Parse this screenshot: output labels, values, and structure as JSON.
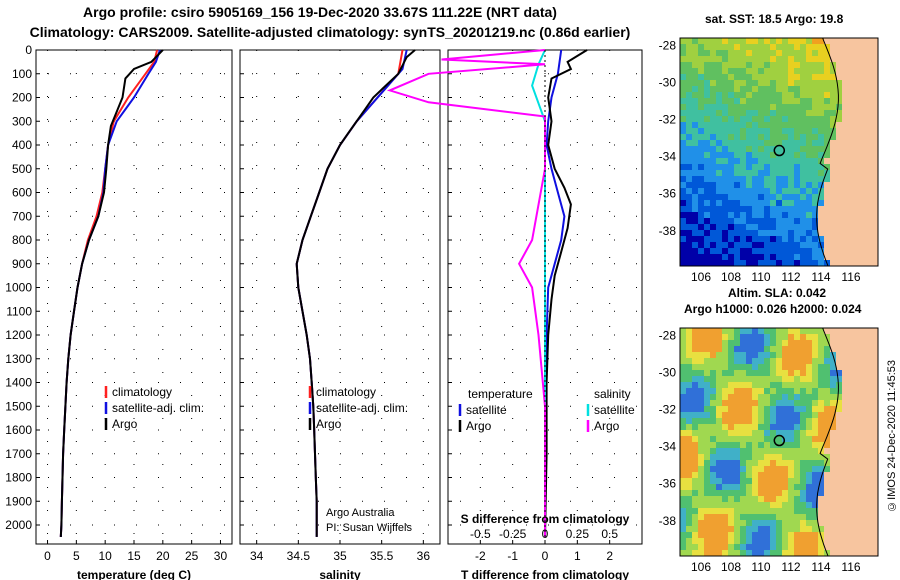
{
  "header": {
    "title_line1": "Argo profile: csiro 5905169_156 19-Dec-2020 33.67S 111.22E (NRT data)",
    "title_line2": "Climatology: CARS2009. Satellite-adjusted climatology: synTS_20201219.nc (0.86d earlier)"
  },
  "colors": {
    "climatology": "#ff2020",
    "satellite": "#1010e0",
    "argo": "#000000",
    "sat_salinity": "#00e0e0",
    "argo_salinity": "#ff00ff"
  },
  "depth_axis": {
    "ticks": [
      "0",
      "100",
      "200",
      "300",
      "400",
      "500",
      "600",
      "700",
      "800",
      "900",
      "1000",
      "1100",
      "1200",
      "1300",
      "1400",
      "1500",
      "1600",
      "1700",
      "1800",
      "1900",
      "2000"
    ]
  },
  "chart_data": [
    {
      "type": "line",
      "panel": "temperature",
      "xlabel": "temperature (deg C)",
      "xlim": [
        -2,
        32
      ],
      "ylim": [
        2080,
        0
      ],
      "xticks": [
        0,
        5,
        10,
        15,
        20,
        25,
        30
      ],
      "xtick_labels": [
        "0",
        "5",
        "10",
        "15",
        "20",
        "25",
        "30"
      ],
      "legend": [
        "climatology",
        "satellite-adj. clim.",
        "Argo"
      ],
      "series": [
        {
          "name": "climatology",
          "points": [
            [
              19,
              0
            ],
            [
              18.5,
              50
            ],
            [
              17,
              100
            ],
            [
              14,
              200
            ],
            [
              11.5,
              300
            ],
            [
              10.5,
              400
            ],
            [
              10,
              500
            ],
            [
              9.5,
              600
            ],
            [
              8.5,
              700
            ],
            [
              7,
              800
            ],
            [
              6,
              900
            ],
            [
              5.2,
              1000
            ],
            [
              4.6,
              1100
            ],
            [
              4,
              1200
            ],
            [
              3.6,
              1300
            ],
            [
              3.3,
              1400
            ],
            [
              3.1,
              1500
            ],
            [
              2.9,
              1600
            ],
            [
              2.7,
              1700
            ],
            [
              2.6,
              1800
            ],
            [
              2.5,
              1900
            ],
            [
              2.4,
              2000
            ],
            [
              2.3,
              2050
            ]
          ]
        },
        {
          "name": "satellite",
          "points": [
            [
              19.5,
              0
            ],
            [
              18.8,
              50
            ],
            [
              17.5,
              100
            ],
            [
              15,
              200
            ],
            [
              12,
              300
            ],
            [
              10.5,
              400
            ],
            [
              10,
              500
            ],
            [
              9.7,
              600
            ],
            [
              8.8,
              700
            ],
            [
              7.2,
              800
            ],
            [
              6,
              900
            ],
            [
              5.2,
              1000
            ],
            [
              4.6,
              1100
            ],
            [
              4,
              1200
            ],
            [
              3.6,
              1300
            ],
            [
              3.3,
              1400
            ],
            [
              3.1,
              1500
            ],
            [
              2.9,
              1600
            ],
            [
              2.7,
              1700
            ],
            [
              2.6,
              1800
            ],
            [
              2.5,
              1900
            ],
            [
              2.4,
              2000
            ],
            [
              2.3,
              2050
            ]
          ]
        },
        {
          "name": "Argo",
          "points": [
            [
              20,
              0
            ],
            [
              19.2,
              20
            ],
            [
              18,
              50
            ],
            [
              15,
              80
            ],
            [
              13.5,
              120
            ],
            [
              13,
              200
            ],
            [
              11,
              320
            ],
            [
              10.5,
              400
            ],
            [
              10.2,
              500
            ],
            [
              9.8,
              600
            ],
            [
              8.8,
              700
            ],
            [
              7.2,
              800
            ],
            [
              6,
              900
            ],
            [
              5.2,
              1000
            ],
            [
              4.6,
              1100
            ],
            [
              4,
              1200
            ],
            [
              3.6,
              1300
            ],
            [
              3.3,
              1400
            ],
            [
              3.1,
              1500
            ],
            [
              2.9,
              1600
            ],
            [
              2.7,
              1700
            ],
            [
              2.6,
              1800
            ],
            [
              2.5,
              1900
            ],
            [
              2.4,
              2000
            ],
            [
              2.3,
              2050
            ]
          ]
        }
      ]
    },
    {
      "type": "line",
      "panel": "salinity",
      "xlabel": "salinity",
      "xlim": [
        33.8,
        36.2
      ],
      "ylim": [
        2080,
        0
      ],
      "xticks": [
        34,
        34.5,
        35,
        35.5,
        36
      ],
      "xtick_labels": [
        "34",
        "34.5",
        "35",
        "35.5",
        "36"
      ],
      "legend": [
        "climatology",
        "satellite-adj. clim.",
        "Argo"
      ],
      "annotation": [
        "Argo Australia",
        "PI: Susan Wijffels"
      ],
      "series": [
        {
          "name": "climatology",
          "points": [
            [
              35.75,
              0
            ],
            [
              35.7,
              100
            ],
            [
              35.45,
              200
            ],
            [
              35.2,
              300
            ],
            [
              35,
              400
            ],
            [
              34.85,
              500
            ],
            [
              34.75,
              600
            ],
            [
              34.65,
              700
            ],
            [
              34.55,
              800
            ],
            [
              34.48,
              900
            ],
            [
              34.5,
              1000
            ],
            [
              34.55,
              1100
            ],
            [
              34.6,
              1200
            ],
            [
              34.64,
              1300
            ],
            [
              34.66,
              1400
            ],
            [
              34.68,
              1500
            ],
            [
              34.69,
              1600
            ],
            [
              34.7,
              1700
            ],
            [
              34.71,
              1800
            ],
            [
              34.72,
              1900
            ],
            [
              34.72,
              2000
            ],
            [
              34.72,
              2050
            ]
          ]
        },
        {
          "name": "satellite",
          "points": [
            [
              35.8,
              0
            ],
            [
              35.75,
              80
            ],
            [
              35.5,
              180
            ],
            [
              35.2,
              300
            ],
            [
              35,
              400
            ],
            [
              34.85,
              500
            ],
            [
              34.75,
              600
            ],
            [
              34.65,
              700
            ],
            [
              34.55,
              800
            ],
            [
              34.48,
              900
            ],
            [
              34.5,
              1000
            ],
            [
              34.55,
              1100
            ],
            [
              34.6,
              1200
            ],
            [
              34.64,
              1300
            ],
            [
              34.66,
              1400
            ],
            [
              34.68,
              1500
            ],
            [
              34.69,
              1600
            ],
            [
              34.7,
              1700
            ],
            [
              34.71,
              1800
            ],
            [
              34.72,
              1900
            ],
            [
              34.72,
              2000
            ],
            [
              34.72,
              2050
            ]
          ]
        },
        {
          "name": "Argo",
          "points": [
            [
              35.9,
              0
            ],
            [
              35.8,
              30
            ],
            [
              35.7,
              100
            ],
            [
              35.55,
              150
            ],
            [
              35.4,
              200
            ],
            [
              35.3,
              250
            ],
            [
              35.1,
              350
            ],
            [
              35,
              400
            ],
            [
              34.85,
              500
            ],
            [
              34.75,
              600
            ],
            [
              34.65,
              700
            ],
            [
              34.55,
              800
            ],
            [
              34.48,
              900
            ],
            [
              34.5,
              1000
            ],
            [
              34.55,
              1100
            ],
            [
              34.6,
              1200
            ],
            [
              34.64,
              1300
            ],
            [
              34.66,
              1400
            ],
            [
              34.68,
              1500
            ],
            [
              34.69,
              1600
            ],
            [
              34.7,
              1700
            ],
            [
              34.71,
              1800
            ],
            [
              34.72,
              1900
            ],
            [
              34.72,
              2000
            ],
            [
              34.72,
              2050
            ]
          ]
        }
      ]
    },
    {
      "type": "line",
      "panel": "difference",
      "xlabel": "T difference from climatology",
      "xlabel_top": "S difference from climatology",
      "xlim": [
        -3,
        3
      ],
      "ylim": [
        2080,
        0
      ],
      "xticks": [
        -2,
        -1,
        0,
        1,
        2
      ],
      "xtick_labels": [
        "-2",
        "-1",
        "0",
        "1",
        "2"
      ],
      "s_tick_labels": [
        "-0.5",
        "-0.25",
        "0",
        "0.25",
        "0.5"
      ],
      "legend_headers": [
        "temperature",
        "salinity"
      ],
      "legend": [
        "satellite",
        "Argo",
        "satellite",
        "Argo"
      ],
      "series": [
        {
          "name": "T satellite",
          "points": [
            [
              0.5,
              0
            ],
            [
              0.4,
              100
            ],
            [
              0.2,
              200
            ],
            [
              0.1,
              300
            ],
            [
              0.05,
              400
            ],
            [
              0.2,
              500
            ],
            [
              0.4,
              600
            ],
            [
              0.6,
              700
            ],
            [
              0.5,
              800
            ],
            [
              0.3,
              900
            ],
            [
              0.1,
              1000
            ],
            [
              0.05,
              1200
            ],
            [
              0,
              1500
            ],
            [
              0,
              2050
            ]
          ]
        },
        {
          "name": "T Argo",
          "points": [
            [
              1.3,
              0
            ],
            [
              0.7,
              50
            ],
            [
              0.8,
              80
            ],
            [
              0.2,
              120
            ],
            [
              0.1,
              200
            ],
            [
              0.2,
              300
            ],
            [
              0.1,
              400
            ],
            [
              0.3,
              500
            ],
            [
              0.6,
              580
            ],
            [
              0.8,
              650
            ],
            [
              0.7,
              750
            ],
            [
              0.5,
              850
            ],
            [
              0.3,
              950
            ],
            [
              0.2,
              1050
            ],
            [
              0.1,
              1200
            ],
            [
              0.05,
              1400
            ],
            [
              0.05,
              1700
            ],
            [
              0,
              2050
            ]
          ]
        },
        {
          "name": "S satellite",
          "points": [
            [
              0,
              0
            ],
            [
              -0.05,
              60
            ],
            [
              -0.1,
              150
            ],
            [
              0,
              300
            ],
            [
              0,
              500
            ],
            [
              0,
              800
            ],
            [
              0,
              1000
            ],
            [
              0,
              2050
            ]
          ]
        },
        {
          "name": "S Argo",
          "points": [
            [
              0,
              0
            ],
            [
              -0.8,
              40
            ],
            [
              0,
              60
            ],
            [
              -0.9,
              100
            ],
            [
              -1.2,
              170
            ],
            [
              -0.9,
              220
            ],
            [
              0,
              280
            ],
            [
              0,
              500
            ],
            [
              -0.1,
              800
            ],
            [
              -0.2,
              900
            ],
            [
              -0.1,
              1000
            ],
            [
              -0.05,
              1200
            ],
            [
              0,
              1500
            ],
            [
              0,
              2050
            ]
          ]
        }
      ]
    }
  ],
  "maps": {
    "sst_title": "sat. SST: 18.5  Argo: 19.8",
    "sla_title_1": "Altim. SLA: 0.042",
    "sla_title_2": "Argo h1000: 0.026  h2000: 0.024",
    "lat_ticks": [
      "-28",
      "-30",
      "-32",
      "-34",
      "-36",
      "-38"
    ],
    "lon_ticks": [
      "106",
      "108",
      "110",
      "112",
      "114",
      "116"
    ],
    "credit": "©IMOS 24-Dec-2020 11:45:53"
  }
}
